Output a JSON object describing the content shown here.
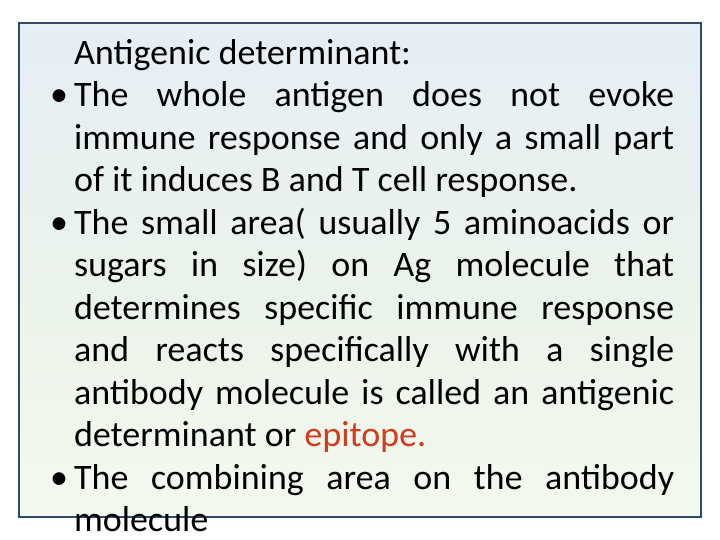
{
  "slide": {
    "background_color": "#ffffff",
    "box": {
      "border_color": "#2e4b6f",
      "gradient_top": "#e6eef6",
      "gradient_mid": "#eaf3ea",
      "gradient_bottom": "#f4f9ee"
    },
    "text_color": "#000000",
    "highlight_color": "#d13c1c",
    "font_size_pt": 27,
    "heading": "Antigenic determinant:",
    "bullets": [
      {
        "text": "The whole antigen does not evoke immune response and only a small part of it induces B and T cell response."
      },
      {
        "text_before": "The small area( usually 5 aminoacids or sugars in size) on Ag molecule that determines specific immune response and reacts specifically with a single antibody molecule is called an antigenic determinant or ",
        "highlight": "epitope.",
        "text_after": ""
      },
      {
        "text": "The combining area on the antibody molecule"
      }
    ]
  }
}
